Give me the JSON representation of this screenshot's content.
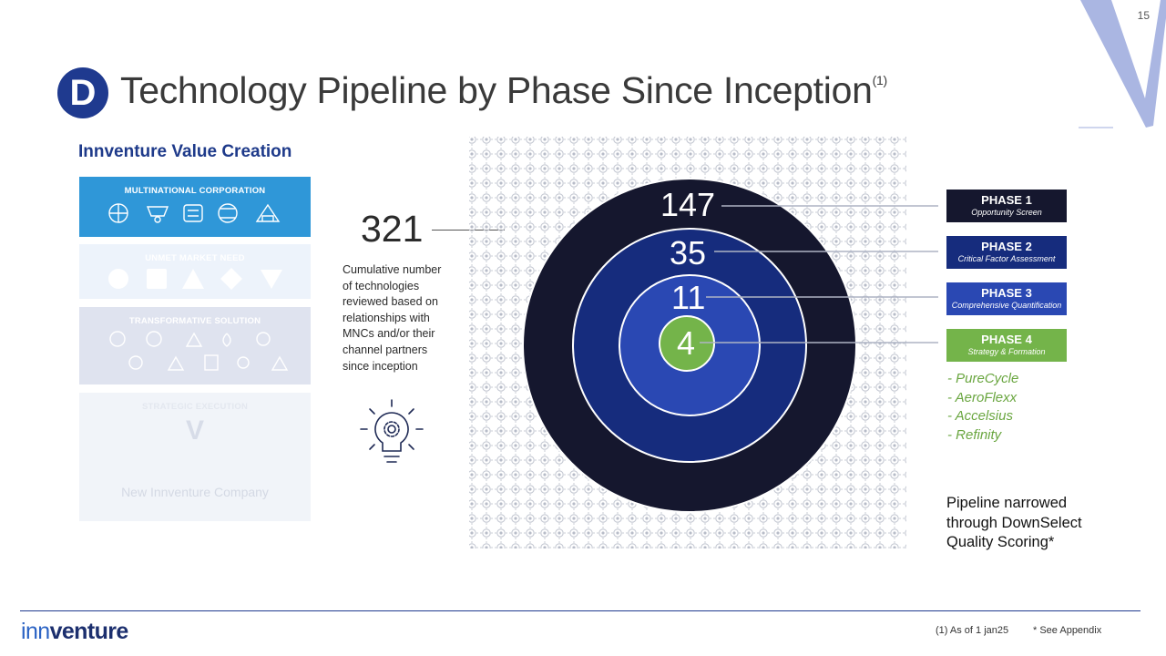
{
  "page_number": "15",
  "title": {
    "badge": "D",
    "text": "Technology Pipeline by Phase Since Inception",
    "footnote_ref": "(1)"
  },
  "value_creation": {
    "heading": "Innventure Value Creation",
    "panels": [
      {
        "label": "Multinational Corporation"
      },
      {
        "label": "Unmet Market Need"
      },
      {
        "label": "Transformative Solution"
      },
      {
        "label": "Strategic Execution",
        "mark": "V",
        "footer": "New Innventure Company"
      }
    ]
  },
  "cumulative": {
    "value": "321",
    "description": "Cumulative number of technologies reviewed based on relationships with MNCs and/or their channel partners since inception"
  },
  "rings": [
    {
      "value": "147",
      "color": "#15172e"
    },
    {
      "value": "35",
      "color": "#162c7d"
    },
    {
      "value": "11",
      "color": "#2a48b3"
    },
    {
      "value": "4",
      "color": "#74b44a"
    }
  ],
  "phases": [
    {
      "title": "PHASE 1",
      "subtitle": "Opportunity Screen"
    },
    {
      "title": "PHASE 2",
      "subtitle": "Critical Factor Assessment"
    },
    {
      "title": "PHASE 3",
      "subtitle": "Comprehensive Quantification"
    },
    {
      "title": "PHASE 4",
      "subtitle": "Strategy & Formation"
    }
  ],
  "phase4_companies": [
    "- PureCycle",
    "- AeroFlexx",
    "- Accelsius",
    "- Refinity"
  ],
  "narrowed_text": "Pipeline narrowed through DownSelect Quality Scoring*",
  "footer": {
    "logo_left": "inn",
    "logo_right": "venture",
    "note": "(1) As of 1 jan25",
    "see_appendix": "* See Appendix"
  }
}
